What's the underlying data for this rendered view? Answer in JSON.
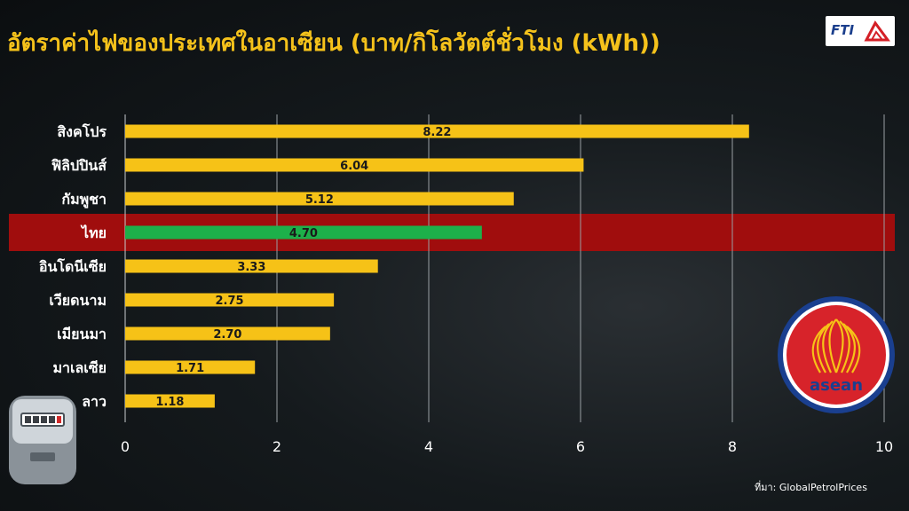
{
  "title": "อัตราค่าไฟของประเทศในอาเซียน (บาท/กิโลวัตต์ชั่วโมง (kWh))",
  "logo_text": "FTI",
  "source": "ที่มา: GlobalPetrolPrices",
  "asean_label": "asean",
  "colors": {
    "bar": "#f6c217",
    "highlight_bar": "#1db04a",
    "highlight_band": "#a00d0d",
    "title": "#f5c21b"
  },
  "icons": [
    "electric-meter-icon",
    "asean-emblem-icon",
    "fti-logo-icon"
  ],
  "chart_data": {
    "type": "bar",
    "orientation": "horizontal",
    "categories": [
      "สิงคโปร",
      "ฟิลิปปินส์",
      "กัมพูชา",
      "ไทย",
      "อินโดนีเซีย",
      "เวียดนาม",
      "เมียนมา",
      "มาเลเซีย",
      "ลาว"
    ],
    "values": [
      8.22,
      6.04,
      5.12,
      4.7,
      3.33,
      2.75,
      2.7,
      1.71,
      1.18
    ],
    "data_labels": [
      "8.22",
      "6.04",
      "5.12",
      "4.70",
      "3.33",
      "2.75",
      "2.70",
      "1.71",
      "1.18"
    ],
    "highlight": "ไทย",
    "xlim": [
      0,
      10
    ],
    "xticks": [
      0,
      2,
      4,
      6,
      8,
      10
    ],
    "grid": "vertical"
  }
}
